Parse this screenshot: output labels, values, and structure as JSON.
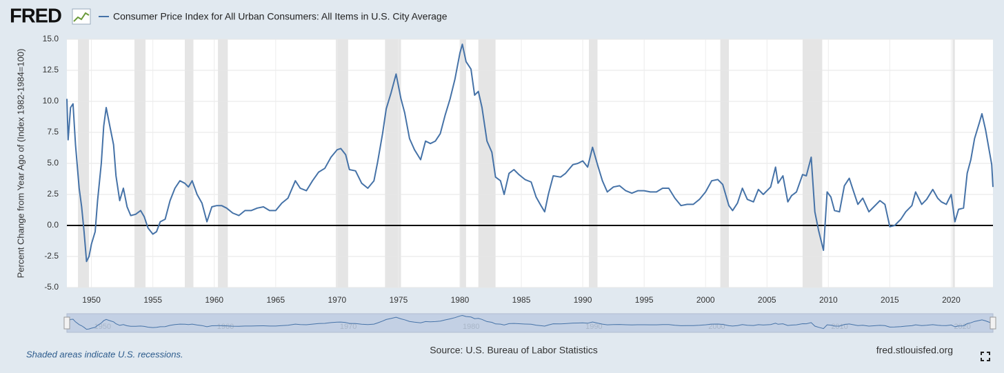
{
  "chart_data": {
    "type": "line",
    "logo": "FRED",
    "ylabel": "Percent Change from Year Ago of (Index 1982-1984=100)",
    "note": "Shaded areas indicate U.S. recessions.",
    "source": "Source: U.S. Bureau of Labor Statistics",
    "site": "fred.stlouisfed.org",
    "xlim": [
      1948,
      2023.4
    ],
    "ylim": [
      -5,
      15
    ],
    "xticks": [
      1950,
      1955,
      1960,
      1965,
      1970,
      1975,
      1980,
      1985,
      1990,
      1995,
      2000,
      2005,
      2010,
      2015,
      2020
    ],
    "navigator_xticks": [
      1950,
      1960,
      1970,
      1980,
      1990,
      2000,
      2010,
      2020
    ],
    "yticks": [
      {
        "value": -5,
        "label": "-5.0"
      },
      -2.5,
      {
        "value": 0,
        "label": "0.0"
      },
      2.5,
      {
        "value": 5,
        "label": "5.0"
      },
      7.5,
      {
        "value": 10,
        "label": "10.0"
      },
      12.5,
      {
        "value": 15,
        "label": "15.0"
      }
    ],
    "grid": true,
    "recessions": [
      [
        1948.9,
        1949.8
      ],
      [
        1953.5,
        1954.4
      ],
      [
        1957.6,
        1958.3
      ],
      [
        1960.3,
        1961.1
      ],
      [
        1969.9,
        1970.9
      ],
      [
        1973.9,
        1975.2
      ],
      [
        1980.0,
        1980.5
      ],
      [
        1981.5,
        1982.9
      ],
      [
        1990.5,
        1991.2
      ],
      [
        2001.2,
        2001.9
      ],
      [
        2007.9,
        2009.5
      ],
      [
        2020.1,
        2020.3
      ]
    ],
    "x": [
      1948.0,
      1948.1,
      1948.3,
      1948.5,
      1948.7,
      1949.0,
      1949.2,
      1949.4,
      1949.6,
      1949.8,
      1950.0,
      1950.3,
      1950.5,
      1950.8,
      1951.0,
      1951.2,
      1951.5,
      1951.8,
      1952.0,
      1952.3,
      1952.6,
      1952.9,
      1953.2,
      1953.6,
      1954.0,
      1954.3,
      1954.6,
      1955.0,
      1955.3,
      1955.6,
      1956.0,
      1956.4,
      1956.8,
      1957.2,
      1957.6,
      1957.9,
      1958.2,
      1958.6,
      1959.0,
      1959.4,
      1959.8,
      1960.2,
      1960.6,
      1961.0,
      1961.5,
      1962.0,
      1962.5,
      1963.0,
      1963.5,
      1964.0,
      1964.5,
      1965.0,
      1965.5,
      1966.0,
      1966.6,
      1967.0,
      1967.5,
      1968.0,
      1968.5,
      1969.0,
      1969.5,
      1970.0,
      1970.3,
      1970.7,
      1971.0,
      1971.5,
      1972.0,
      1972.5,
      1973.0,
      1973.3,
      1973.7,
      1974.0,
      1974.4,
      1974.8,
      1975.2,
      1975.5,
      1975.9,
      1976.3,
      1976.8,
      1977.2,
      1977.6,
      1978.0,
      1978.4,
      1978.8,
      1979.2,
      1979.6,
      1980.0,
      1980.2,
      1980.5,
      1980.9,
      1981.2,
      1981.5,
      1981.8,
      1982.2,
      1982.6,
      1982.9,
      1983.3,
      1983.6,
      1984.0,
      1984.4,
      1984.8,
      1985.3,
      1985.8,
      1986.2,
      1986.6,
      1986.9,
      1987.2,
      1987.6,
      1988.2,
      1988.6,
      1989.2,
      1989.6,
      1990.0,
      1990.4,
      1990.8,
      1991.2,
      1991.6,
      1992.0,
      1992.5,
      1993.0,
      1993.5,
      1994.0,
      1994.5,
      1995.0,
      1995.5,
      1996.0,
      1996.5,
      1997.0,
      1997.5,
      1998.0,
      1998.5,
      1999.0,
      1999.5,
      2000.0,
      2000.5,
      2001.0,
      2001.4,
      2001.9,
      2002.2,
      2002.6,
      2003.0,
      2003.4,
      2003.9,
      2004.3,
      2004.7,
      2005.3,
      2005.7,
      2005.9,
      2006.3,
      2006.7,
      2007.0,
      2007.4,
      2007.9,
      2008.2,
      2008.6,
      2008.9,
      2009.2,
      2009.6,
      2009.9,
      2010.2,
      2010.5,
      2010.9,
      2011.3,
      2011.7,
      2012.0,
      2012.4,
      2012.8,
      2013.3,
      2013.7,
      2014.2,
      2014.6,
      2015.0,
      2015.4,
      2015.9,
      2016.3,
      2016.8,
      2017.1,
      2017.6,
      2018.0,
      2018.5,
      2018.9,
      2019.2,
      2019.6,
      2020.0,
      2020.3,
      2020.6,
      2021.0,
      2021.3,
      2021.6,
      2021.9,
      2022.3,
      2022.5,
      2022.8,
      2023.1,
      2023.3,
      2023.4
    ],
    "series": [
      {
        "name": "Consumer Price Index for All Urban Consumers: All Items in U.S. City Average",
        "color": "#4572a7",
        "values": [
          10.2,
          6.9,
          9.5,
          9.8,
          6.5,
          3.0,
          1.5,
          -0.5,
          -2.9,
          -2.5,
          -1.5,
          -0.5,
          2.0,
          5.0,
          8.0,
          9.5,
          8.0,
          6.5,
          4.0,
          2.0,
          3.0,
          1.5,
          0.8,
          0.9,
          1.2,
          0.7,
          -0.2,
          -0.7,
          -0.5,
          0.3,
          0.5,
          2.0,
          3.0,
          3.6,
          3.4,
          3.1,
          3.6,
          2.5,
          1.8,
          0.3,
          1.5,
          1.6,
          1.6,
          1.4,
          1.0,
          0.8,
          1.2,
          1.2,
          1.4,
          1.5,
          1.2,
          1.2,
          1.8,
          2.2,
          3.6,
          3.0,
          2.8,
          3.6,
          4.3,
          4.6,
          5.5,
          6.1,
          6.2,
          5.7,
          4.5,
          4.4,
          3.4,
          3.0,
          3.6,
          5.1,
          7.4,
          9.4,
          10.7,
          12.2,
          10.2,
          9.1,
          7.0,
          6.1,
          5.3,
          6.8,
          6.6,
          6.8,
          7.4,
          8.9,
          10.2,
          11.8,
          13.9,
          14.6,
          13.2,
          12.6,
          10.5,
          10.8,
          9.5,
          6.8,
          5.9,
          3.9,
          3.6,
          2.5,
          4.2,
          4.5,
          4.1,
          3.7,
          3.5,
          2.3,
          1.6,
          1.1,
          2.5,
          4.0,
          3.9,
          4.2,
          4.9,
          5.0,
          5.2,
          4.7,
          6.3,
          4.9,
          3.6,
          2.7,
          3.1,
          3.2,
          2.8,
          2.6,
          2.8,
          2.8,
          2.7,
          2.7,
          3.0,
          3.0,
          2.2,
          1.6,
          1.7,
          1.7,
          2.1,
          2.7,
          3.6,
          3.7,
          3.3,
          1.6,
          1.2,
          1.8,
          3.0,
          2.1,
          1.9,
          2.9,
          2.5,
          3.1,
          4.7,
          3.4,
          4.0,
          1.9,
          2.4,
          2.7,
          4.1,
          4.0,
          5.5,
          1.1,
          -0.4,
          -2.0,
          2.7,
          2.3,
          1.2,
          1.1,
          3.2,
          3.8,
          2.9,
          1.7,
          2.2,
          1.1,
          1.5,
          2.0,
          1.7,
          -0.1,
          0.0,
          0.5,
          1.1,
          1.6,
          2.7,
          1.7,
          2.1,
          2.9,
          2.2,
          1.9,
          1.7,
          2.5,
          0.3,
          1.3,
          1.4,
          4.2,
          5.3,
          7.0,
          8.3,
          9.0,
          7.7,
          6.0,
          4.9,
          3.1
        ]
      }
    ]
  }
}
